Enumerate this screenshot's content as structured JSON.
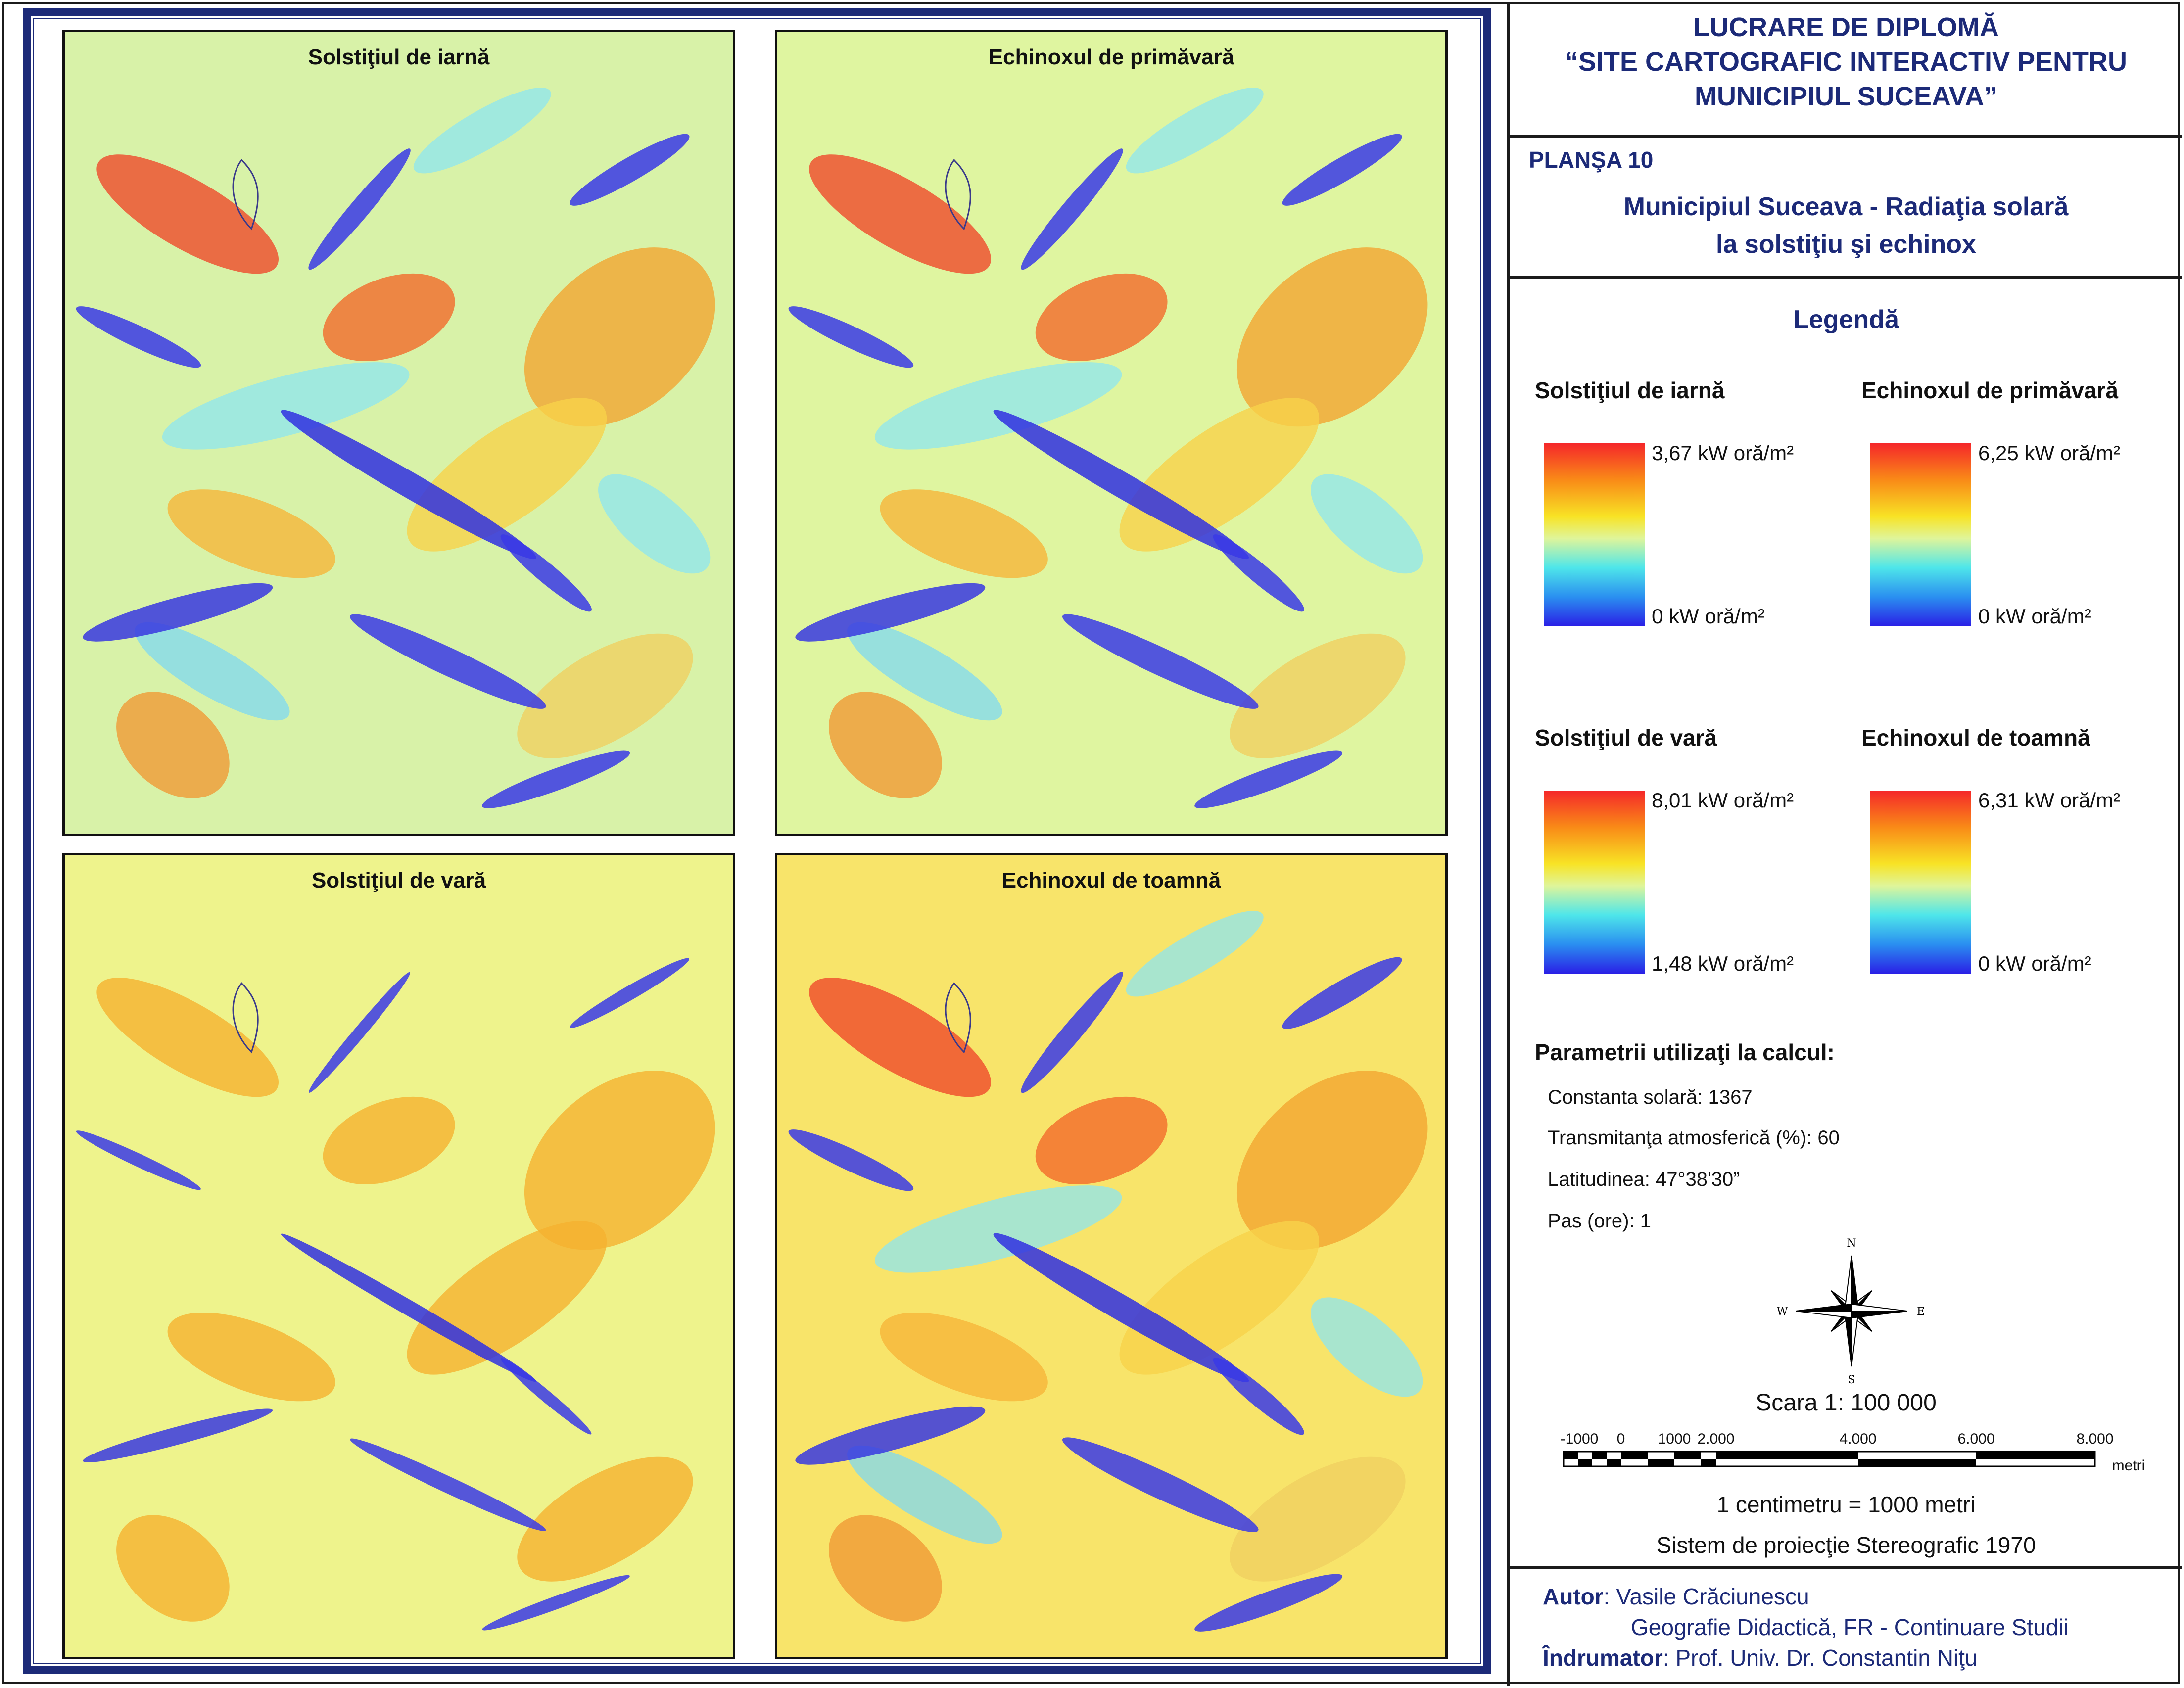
{
  "header": {
    "line1": "LUCRARE DE DIPLOMĂ",
    "line2": "“SITE CARTOGRAFIC INTERACTIV PENTRU",
    "line3": "MUNICIPIUL SUCEAVA”"
  },
  "plate": {
    "number": "PLANŞA 10",
    "subtitle1": "Municipiul Suceava - Radiaţia solară",
    "subtitle2": "la solstiţiu şi echinox"
  },
  "maps": [
    {
      "title": "Solstiţiul de iarnă"
    },
    {
      "title": "Echinoxul de primăvară"
    },
    {
      "title": "Solstiţiul de vară"
    },
    {
      "title": "Echinoxul de toamnă"
    }
  ],
  "legend": {
    "title": "Legendă",
    "items": [
      {
        "name": "Solstiţiul de iarnă",
        "max": "3,67 kW oră/m²",
        "min": "0 kW oră/m²"
      },
      {
        "name": "Echinoxul de primăvară",
        "max": "6,25 kW oră/m²",
        "min": "0 kW oră/m²"
      },
      {
        "name": "Solstiţiul de vară",
        "max": "8,01 kW oră/m²",
        "min": "1,48 kW oră/m²"
      },
      {
        "name": "Echinoxul de toamnă",
        "max": "6,31 kW oră/m²",
        "min": "0 kW oră/m²"
      }
    ]
  },
  "params": {
    "title": "Parametrii utilizaţi la calcul:",
    "items": [
      "Constanta solară: 1367",
      "Transmitanţa atmosferică (%): 60",
      "Latitudinea: 47°38'30”",
      "Pas (ore): 1"
    ]
  },
  "compass": {
    "n": "N",
    "s": "S",
    "e": "E",
    "w": "W"
  },
  "scale": {
    "title": "Scara 1: 100 000",
    "ticks": [
      "-1000",
      "0",
      "1000",
      "2.000",
      "4.000",
      "6.000",
      "8.000"
    ],
    "unit": "metri",
    "note": "1 centimetru = 1000 metri",
    "projection": "Sistem de proiecţie Stereografic 1970"
  },
  "author": {
    "label": "Autor",
    "name": ": Vasile Crăciunescu",
    "program": "Geografie Didactică, FR - Continuare Studii",
    "advisor_label": "Îndrumator",
    "advisor": ": Prof. Univ. Dr. Constantin Niţu"
  },
  "colors": {
    "frame": "#1c2a78",
    "high": "#f5272a",
    "mid": "#f8e325",
    "low": "#2a1fe6"
  }
}
